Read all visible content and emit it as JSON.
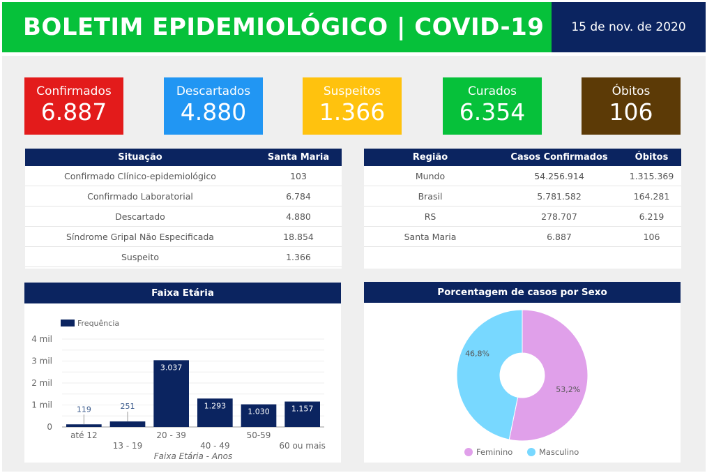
{
  "header": {
    "title": "BOLETIM EPIDEMIOLÓGICO | COVID-19",
    "date": "15 de nov. de 2020"
  },
  "cards": [
    {
      "label": "Confirmados",
      "value": "6.887",
      "color": "#e31b1b"
    },
    {
      "label": "Descartados",
      "value": "4.880",
      "color": "#2196f3"
    },
    {
      "label": "Suspeitos",
      "value": "1.366",
      "color": "#ffc20e"
    },
    {
      "label": "Curados",
      "value": "6.354",
      "color": "#06c13a"
    },
    {
      "label": "Óbitos",
      "value": "106",
      "color": "#5c3a06"
    }
  ],
  "situacao_table": {
    "headers": [
      "Situação",
      "Santa Maria"
    ],
    "rows": [
      [
        "Confirmado Clínico-epidemiológico",
        "103"
      ],
      [
        "Confirmado Laboratorial",
        "6.784"
      ],
      [
        "Descartado",
        "4.880"
      ],
      [
        "Síndrome Gripal Não Especificada",
        "18.854"
      ],
      [
        "Suspeito",
        "1.366"
      ]
    ]
  },
  "regiao_table": {
    "headers": [
      "Região",
      "Casos Confirmados",
      "Óbitos"
    ],
    "rows": [
      [
        "Mundo",
        "54.256.914",
        "1.315.369"
      ],
      [
        "Brasil",
        "5.781.582",
        "164.281"
      ],
      [
        "RS",
        "278.707",
        "6.219"
      ],
      [
        "Santa Maria",
        "6.887",
        "106"
      ]
    ]
  },
  "chart_data": [
    {
      "type": "bar",
      "title": "Faixa Etária",
      "xlabel": "Faixa Etária - Anos",
      "ylabel": "",
      "legend": "Frequência",
      "legend_position": "top-left",
      "categories": [
        "até 12",
        "13 - 19",
        "20 - 39",
        "40 - 49",
        "50-59",
        "60 ou mais"
      ],
      "values": [
        119,
        251,
        3037,
        1293,
        1030,
        1157
      ],
      "data_labels": [
        "119",
        "251",
        "3.037",
        "1.293",
        "1.030",
        "1.157"
      ],
      "ylim": [
        0,
        4000
      ],
      "yticks": [
        0,
        1000,
        2000,
        3000,
        4000
      ],
      "ytick_labels": [
        "0",
        "1 mil",
        "2 mil",
        "3 mil",
        "4 mil"
      ],
      "grid": true,
      "color": "#0b2460"
    },
    {
      "type": "pie",
      "title": "Porcentagem de casos por Sexo",
      "donut": true,
      "legend_position": "bottom",
      "slices": [
        {
          "label": "Feminino",
          "value": 53.2,
          "display": "53,2%",
          "color": "#e0a0ea"
        },
        {
          "label": "Masculino",
          "value": 46.8,
          "display": "46,8%",
          "color": "#78d8ff"
        }
      ]
    }
  ]
}
